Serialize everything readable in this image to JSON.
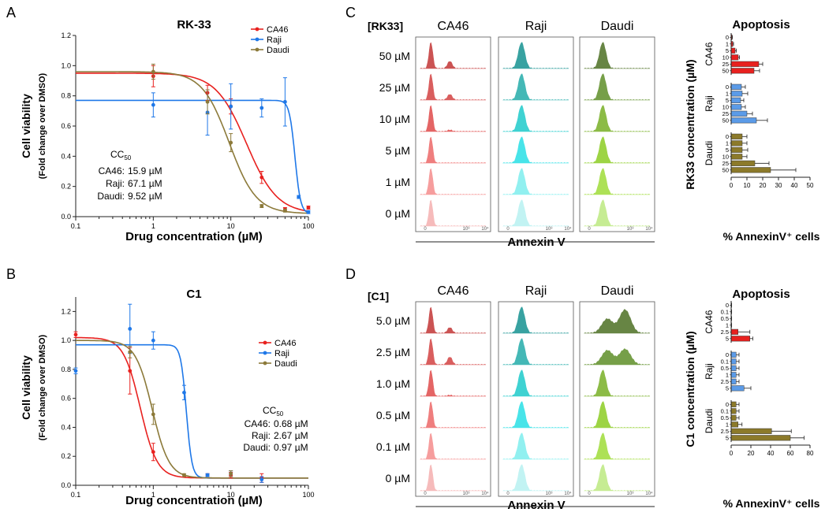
{
  "panels": {
    "A": {
      "label": "A",
      "chart_data": {
        "type": "scatter",
        "title": "RK-33",
        "xlabel": "Drug concentration (µM)",
        "ylabel": "Cell viability",
        "ylabel2": "(Fold change over DMSO)",
        "xscale": "log",
        "xlim": [
          0.1,
          100
        ],
        "ylim": [
          0,
          1.2
        ],
        "xticks": [
          "0.1",
          "1",
          "10",
          "100"
        ],
        "yticks": [
          "0.0",
          "0.2",
          "0.4",
          "0.6",
          "0.8",
          "1.0",
          "1.2"
        ],
        "legend_position": "top-right",
        "series": [
          {
            "name": "CA46",
            "color": "#e8211f",
            "top": 0.95,
            "bottom": 0.02,
            "ic50": 15.9,
            "hill": 2.2,
            "points": [
              {
                "x": 1,
                "y": 0.93,
                "err": 0.07
              },
              {
                "x": 5,
                "y": 0.82,
                "err": 0.05
              },
              {
                "x": 10,
                "y": 0.73,
                "err": 0.05
              },
              {
                "x": 25,
                "y": 0.26,
                "err": 0.04
              },
              {
                "x": 50,
                "y": 0.05,
                "err": 0.01
              },
              {
                "x": 100,
                "y": 0.06,
                "err": 0.01
              }
            ]
          },
          {
            "name": "Raji",
            "color": "#1f78e8",
            "top": 0.77,
            "bottom": 0.02,
            "ic50": 67.1,
            "hill": 12,
            "points": [
              {
                "x": 1,
                "y": 0.74,
                "err": 0.08
              },
              {
                "x": 5,
                "y": 0.69,
                "err": 0.15
              },
              {
                "x": 10,
                "y": 0.73,
                "err": 0.15
              },
              {
                "x": 25,
                "y": 0.72,
                "err": 0.06
              },
              {
                "x": 50,
                "y": 0.76,
                "err": 0.16
              },
              {
                "x": 75,
                "y": 0.13,
                "err": 0.01
              },
              {
                "x": 100,
                "y": 0.03,
                "err": 0.01
              }
            ]
          },
          {
            "name": "Daudi",
            "color": "#8c7a3a",
            "top": 0.96,
            "bottom": 0.02,
            "ic50": 9.52,
            "hill": 2.5,
            "points": [
              {
                "x": 1,
                "y": 0.96,
                "err": 0.05
              },
              {
                "x": 5,
                "y": 0.76,
                "err": 0.08
              },
              {
                "x": 10,
                "y": 0.49,
                "err": 0.06
              },
              {
                "x": 25,
                "y": 0.07,
                "err": 0.01
              },
              {
                "x": 50,
                "y": 0.04,
                "err": 0.01
              }
            ]
          }
        ],
        "annotation": {
          "header_main": "CC",
          "header_sub": "50",
          "rows": [
            {
              "name": "CA46:",
              "value": "15.9 µM"
            },
            {
              "name": "Raji:",
              "value": "67.1 µM"
            },
            {
              "name": "Daudi:",
              "value": "9.52 µM"
            }
          ]
        }
      }
    },
    "B": {
      "label": "B",
      "chart_data": {
        "type": "scatter",
        "title": "C1",
        "xlabel": "Drug concentration (µM)",
        "ylabel": "Cell viability",
        "ylabel2": "(Fold change over DMSO)",
        "xscale": "log",
        "xlim": [
          0.1,
          100
        ],
        "ylim": [
          0,
          1.3
        ],
        "xticks": [
          "0.1",
          "1",
          "10",
          "100"
        ],
        "yticks": [
          "0.0",
          "0.2",
          "0.4",
          "0.6",
          "0.8",
          "1.0",
          "1.2"
        ],
        "legend_position": "top-right",
        "series": [
          {
            "name": "CA46",
            "color": "#e8211f",
            "top": 1.02,
            "bottom": 0.05,
            "ic50": 0.68,
            "hill": 4,
            "points": [
              {
                "x": 0.1,
                "y": 1.04,
                "err": 0.02
              },
              {
                "x": 0.5,
                "y": 0.79,
                "err": 0.16
              },
              {
                "x": 1,
                "y": 0.23,
                "err": 0.06
              },
              {
                "x": 5,
                "y": 0.07,
                "err": 0.01
              },
              {
                "x": 10,
                "y": 0.07,
                "err": 0.02
              },
              {
                "x": 25,
                "y": 0.05,
                "err": 0.03
              }
            ]
          },
          {
            "name": "Raji",
            "color": "#1f78e8",
            "top": 0.97,
            "bottom": 0.05,
            "ic50": 2.67,
            "hill": 12,
            "points": [
              {
                "x": 0.1,
                "y": 0.79,
                "err": 0.02
              },
              {
                "x": 0.5,
                "y": 1.08,
                "err": 0.17
              },
              {
                "x": 1,
                "y": 1.0,
                "err": 0.06
              },
              {
                "x": 2.5,
                "y": 0.64,
                "err": 0.05
              },
              {
                "x": 5,
                "y": 0.07,
                "err": 0.01
              },
              {
                "x": 10,
                "y": 0.08,
                "err": 0.02
              },
              {
                "x": 25,
                "y": 0.04,
                "err": 0.02
              }
            ]
          },
          {
            "name": "Daudi",
            "color": "#8c7a3a",
            "top": 1.0,
            "bottom": 0.05,
            "ic50": 0.97,
            "hill": 4,
            "points": [
              {
                "x": 0.5,
                "y": 0.92,
                "err": 0.04
              },
              {
                "x": 1,
                "y": 0.49,
                "err": 0.07
              },
              {
                "x": 2.5,
                "y": 0.07,
                "err": 0.01
              },
              {
                "x": 10,
                "y": 0.08,
                "err": 0.02
              }
            ]
          }
        ],
        "annotation": {
          "header_main": "CC",
          "header_sub": "50",
          "rows": [
            {
              "name": "CA46:",
              "value": "0.68 µM"
            },
            {
              "name": "Raji:",
              "value": "2.67 µM"
            },
            {
              "name": "Daudi:",
              "value": "0.97 µM"
            }
          ]
        }
      }
    },
    "C": {
      "label": "C",
      "header": "[RK33]",
      "columns": [
        "CA46",
        "Raji",
        "Daudi"
      ],
      "rows": [
        "50 µM",
        "25 µM",
        "10 µM",
        "5 µM",
        "1 µM",
        "0 µM"
      ],
      "xlabel": "Annexin V",
      "tick_labels": [
        "0",
        "10³",
        "10⁴"
      ],
      "colors": {
        "CA46": [
          "#c94a4a",
          "#d85656",
          "#e35d5d",
          "#ef7878",
          "#f69898",
          "#f6b8b8"
        ],
        "Raji": [
          "#2e9e9c",
          "#3bb5b3",
          "#35d0d0",
          "#3fe3e8",
          "#8cf0f0",
          "#bff3f3"
        ],
        "Daudi": [
          "#5f7f3a",
          "#6f9a3f",
          "#86b83d",
          "#98d23a",
          "#a9e04e",
          "#c4ec8e"
        ]
      },
      "apoptosis_right_peaks": {
        "CA46": [
          0.28,
          0.22,
          0.06,
          0.0,
          0.0,
          0.0
        ],
        "Raji": [
          0,
          0,
          0,
          0,
          0,
          0
        ],
        "Daudi": [
          0,
          0,
          0,
          0,
          0,
          0
        ]
      }
    },
    "D": {
      "label": "D",
      "header": "[C1]",
      "columns": [
        "CA46",
        "Raji",
        "Daudi"
      ],
      "rows": [
        "5.0 µM",
        "2.5 µM",
        "1.0 µM",
        "0.5 µM",
        "0.1 µM",
        "0 µM"
      ],
      "xlabel": "Annexin V",
      "tick_labels": [
        "0",
        "10³",
        "10⁴"
      ],
      "colors": {
        "CA46": [
          "#c94a4a",
          "#d85656",
          "#e35d5d",
          "#ef7878",
          "#f69898",
          "#f6b8b8"
        ],
        "Raji": [
          "#2e9e9c",
          "#3bb5b3",
          "#35d0d0",
          "#3fe3e8",
          "#8cf0f0",
          "#bff3f3"
        ],
        "Daudi": [
          "#5f7f3a",
          "#6f9a3f",
          "#86b83d",
          "#98d23a",
          "#a9e04e",
          "#c4ec8e"
        ]
      },
      "apoptosis_right_peaks": {
        "CA46": [
          0.22,
          0.3,
          0.04,
          0.0,
          0.0,
          0.0
        ],
        "Raji": [
          0,
          0,
          0,
          0,
          0,
          0
        ],
        "Daudi": [
          0.9,
          0.6,
          0,
          0,
          0,
          0
        ]
      }
    },
    "C_bar": {
      "chart_data": {
        "type": "bar",
        "orientation": "horizontal",
        "title": "Apoptosis",
        "ylabel": "RK33 concentration (µM)",
        "xlabel": "% AnnexinV⁺ cells",
        "xlim": [
          0,
          50
        ],
        "xticks": [
          "0",
          "10",
          "20",
          "30",
          "40",
          "50"
        ],
        "groups": [
          {
            "name": "CA46",
            "color": "#e8211f",
            "categories": [
              "0",
              "1",
              "5",
              "10",
              "25",
              "50"
            ],
            "values": [
              0.5,
              1.0,
              2.5,
              4.5,
              17.5,
              14.5
            ],
            "errors": [
              0.3,
              0.5,
              0.8,
              0.8,
              2.5,
              3.5
            ]
          },
          {
            "name": "Raji",
            "color": "#5b9be8",
            "categories": [
              "0",
              "1",
              "5",
              "10",
              "25",
              "50"
            ],
            "values": [
              6.5,
              7.0,
              6.0,
              6.5,
              10.0,
              16.0
            ],
            "errors": [
              2.5,
              3.5,
              2.0,
              2.5,
              3.5,
              7.0
            ]
          },
          {
            "name": "Daudi",
            "color": "#8c7a2a",
            "categories": [
              "0",
              "1",
              "5",
              "10",
              "25",
              "50"
            ],
            "values": [
              7.0,
              7.0,
              7.0,
              7.0,
              15.0,
              25.0
            ],
            "errors": [
              3.0,
              3.0,
              3.5,
              3.0,
              9.0,
              16.0
            ]
          }
        ]
      }
    },
    "D_bar": {
      "chart_data": {
        "type": "bar",
        "orientation": "horizontal",
        "title": "Apoptosis",
        "ylabel": "C1 concentration (µM)",
        "xlabel": "% AnnexinV⁺ cells",
        "xlim": [
          0,
          80
        ],
        "xticks": [
          "0",
          "20",
          "40",
          "60",
          "80"
        ],
        "groups": [
          {
            "name": "CA46",
            "color": "#e8211f",
            "categories": [
              "0",
              "0.1",
              "0.5",
              "1",
              "2.5",
              "5"
            ],
            "values": [
              0.3,
              0.3,
              0.3,
              0.3,
              7.0,
              19.0
            ],
            "errors": [
              0.2,
              0.2,
              0.2,
              0.2,
              12.0,
              3.0
            ]
          },
          {
            "name": "Raji",
            "color": "#5b9be8",
            "categories": [
              "0",
              "0.1",
              "0.5",
              "1",
              "2.5",
              "5"
            ],
            "values": [
              5.0,
              5.0,
              5.0,
              5.0,
              5.0,
              13.0
            ],
            "errors": [
              3.0,
              3.0,
              3.0,
              3.0,
              3.0,
              7.0
            ]
          },
          {
            "name": "Daudi",
            "color": "#8c7a2a",
            "categories": [
              "0",
              "0.1",
              "0.5",
              "1",
              "2.5",
              "5"
            ],
            "values": [
              5.0,
              5.0,
              5.0,
              7.0,
              41.0,
              60.0
            ],
            "errors": [
              3.0,
              3.0,
              3.0,
              4.0,
              20.0,
              14.0
            ]
          }
        ]
      }
    }
  }
}
